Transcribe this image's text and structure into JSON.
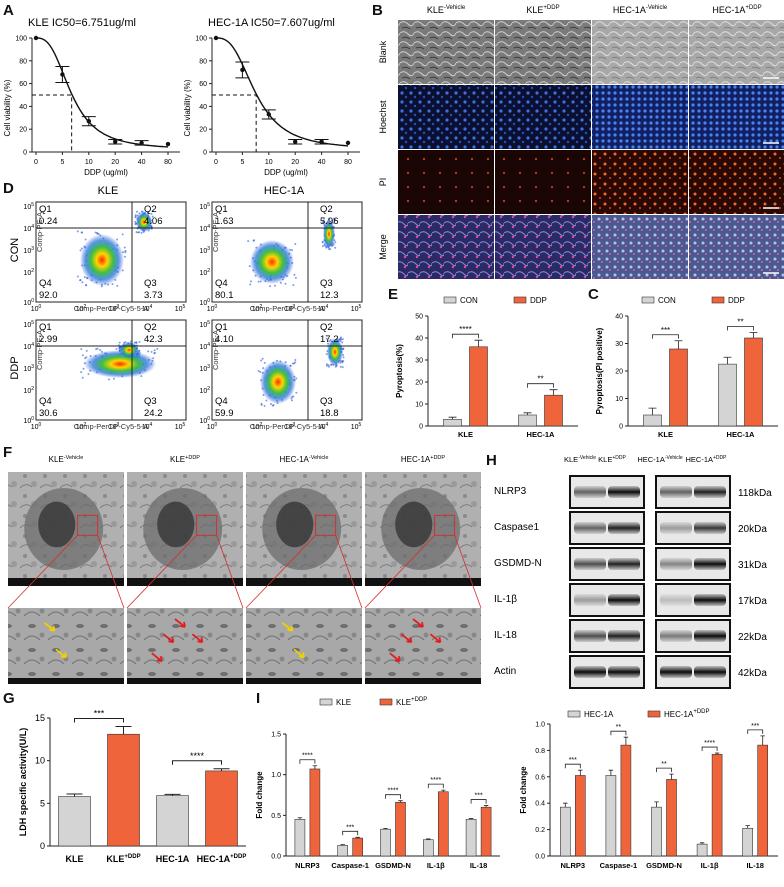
{
  "panels": {
    "A": {
      "letter": "A",
      "charts": [
        {
          "title": "KLE IC50=6.751ug/ml",
          "xlabel": "DDP (ug/ml)",
          "ylabel": "Cell viability (%)",
          "xticks": [
            "0",
            "5",
            "10",
            "20",
            "40",
            "80"
          ],
          "yticks": [
            "0",
            "20",
            "40",
            "60",
            "80",
            "100"
          ],
          "points": [
            [
              0,
              100
            ],
            [
              5,
              68
            ],
            [
              10,
              27
            ],
            [
              20,
              9
            ],
            [
              40,
              8
            ],
            [
              80,
              7
            ]
          ],
          "ic50": 6.751
        },
        {
          "title": "HEC-1A IC50=7.607ug/ml",
          "xlabel": "DDP (ug/ml)",
          "ylabel": "Cell viability (%)",
          "xticks": [
            "0",
            "5",
            "10",
            "20",
            "40",
            "80"
          ],
          "yticks": [
            "0",
            "20",
            "40",
            "60",
            "80",
            "100"
          ],
          "points": [
            [
              0,
              100
            ],
            [
              5,
              72
            ],
            [
              10,
              33
            ],
            [
              20,
              9
            ],
            [
              40,
              9
            ],
            [
              80,
              8
            ]
          ],
          "ic50": 7.607
        }
      ]
    },
    "B": {
      "letter": "B",
      "columns": [
        "KLE",
        "KLE",
        "HEC-1A",
        "HEC-1A"
      ],
      "column_sups": [
        "-Vehicle",
        "+DDP",
        "-Vehicle",
        "+DDP"
      ],
      "rows": [
        "Blank",
        "Hoechst",
        "PI",
        "Merge"
      ]
    },
    "C": {
      "letter": "C",
      "legend": [
        "CON",
        "DDP"
      ],
      "ylabel": "Pyroptosis(PI positive)",
      "yticks": [
        "0",
        "10",
        "20",
        "30",
        "40"
      ],
      "categories": [
        "KLE",
        "HEC-1A"
      ],
      "sig": [
        "***",
        "**"
      ]
    },
    "D": {
      "letter": "D",
      "col_titles": [
        "KLE",
        "HEC-1A"
      ],
      "row_labels": [
        "CON",
        "DDP"
      ],
      "xaxis": "Comp-PerCP-Cy5-5-A",
      "yaxis": "Comp-PE-A",
      "tick_exps": [
        "0",
        "2",
        "3",
        "4",
        "5"
      ],
      "tick_base": "10",
      "plots": [
        {
          "q1": "Q1",
          "q2": "Q2",
          "q3": "Q3",
          "q4": "Q4",
          "v1": "0.24",
          "v2": "4.06",
          "v3": "3.73",
          "v4": "92.0"
        },
        {
          "q1": "Q1",
          "q2": "Q2",
          "q3": "Q3",
          "q4": "Q4",
          "v1": "1.63",
          "v2": "5.96",
          "v3": "12.3",
          "v4": "80.1"
        },
        {
          "q1": "Q1",
          "q2": "Q2",
          "q3": "Q3",
          "q4": "Q4",
          "v1": "2.99",
          "v2": "42.3",
          "v3": "24.2",
          "v4": "30.6"
        },
        {
          "q1": "Q1",
          "q2": "Q2",
          "q3": "Q3",
          "q4": "Q4",
          "v1": "4.10",
          "v2": "17.2",
          "v3": "18.8",
          "v4": "59.9"
        }
      ]
    },
    "E": {
      "letter": "E",
      "legend": [
        "CON",
        "DDP"
      ],
      "ylabel": "Pyroptosis(%)",
      "yticks": [
        "0",
        "10",
        "20",
        "30",
        "40",
        "50"
      ],
      "categories": [
        "KLE",
        "HEC-1A"
      ],
      "sig": [
        "****",
        "**"
      ]
    },
    "F": {
      "letter": "F",
      "columns": [
        "KLE",
        "KLE",
        "HEC-1A",
        "HEC-1A"
      ],
      "column_sups": [
        "-Vehicle",
        "+DDP",
        "-Vehicle",
        "+DDP"
      ]
    },
    "G": {
      "letter": "G",
      "ylabel": "LDH specific activity(U/L)",
      "yticks": [
        "0",
        "5",
        "10",
        "15"
      ],
      "categories": [
        "KLE",
        "KLE",
        "HEC-1A",
        "HEC-1A"
      ],
      "category_sups": [
        "",
        "+DDP",
        "",
        "+DDP"
      ],
      "sig": [
        "***",
        "****"
      ]
    },
    "H": {
      "letter": "H",
      "columns": [
        "KLE",
        "KLE",
        "HEC-1A",
        "HEC-1A"
      ],
      "column_sups": [
        "-Vehicle",
        "+DDP",
        "-Vehicle",
        "+DDP"
      ],
      "proteins": [
        "NLRP3",
        "Caspase1",
        "GSDMD-N",
        "IL-1β",
        "IL-18",
        "Actin"
      ],
      "sizes": [
        "118kDa",
        "20kDa",
        "31kDa",
        "17kDa",
        "22kDa",
        "42kDa"
      ]
    },
    "I": {
      "letter": "I",
      "charts": [
        {
          "legend": [
            "KLE",
            "KLE"
          ],
          "legend_sups": [
            "",
            "+DDP"
          ],
          "ylabel": "Fold change",
          "yticks": [
            "0.0",
            "0.5",
            "1.0",
            "1.5"
          ],
          "categories": [
            "NLRP3",
            "Caspase-1",
            "GSDMD-N",
            "IL-1β",
            "IL-18"
          ],
          "sig": [
            "****",
            "***",
            "****",
            "****",
            "***"
          ]
        },
        {
          "legend": [
            "HEC-1A",
            "HEC-1A"
          ],
          "legend_sups": [
            "",
            "+DDP"
          ],
          "ylabel": "Fold change",
          "yticks": [
            "0.0",
            "0.2",
            "0.4",
            "0.6",
            "0.8",
            "1.0"
          ],
          "categories": [
            "NLRP3",
            "Caspase-1",
            "GSDMD-N",
            "IL-1β",
            "IL-18"
          ],
          "sig": [
            "***",
            "**",
            "**",
            "****",
            "***"
          ]
        }
      ]
    }
  },
  "colors": {
    "control": "#d4d4d4",
    "treated": "#f0643c",
    "axis": "#222222",
    "bar_edge": "#333333"
  },
  "chart_data": [
    {
      "type": "scatter",
      "panel": "A-KLE",
      "x": [
        0,
        5,
        10,
        20,
        40,
        80
      ],
      "y": [
        100,
        68,
        27,
        9,
        8,
        7
      ],
      "ylim": [
        0,
        100
      ]
    },
    {
      "type": "scatter",
      "panel": "A-HEC-1A",
      "x": [
        0,
        5,
        10,
        20,
        40,
        80
      ],
      "y": [
        100,
        72,
        33,
        9,
        9,
        8
      ],
      "ylim": [
        0,
        100
      ]
    },
    {
      "type": "bar",
      "panel": "E",
      "categories": [
        "KLE",
        "HEC-1A"
      ],
      "series": [
        {
          "name": "CON",
          "values": [
            3,
            5
          ],
          "err": [
            1,
            1
          ]
        },
        {
          "name": "DDP",
          "values": [
            36,
            14
          ],
          "err": [
            3,
            2.5
          ]
        }
      ],
      "ylim": [
        0,
        50
      ]
    },
    {
      "type": "bar",
      "panel": "C",
      "categories": [
        "KLE",
        "HEC-1A"
      ],
      "series": [
        {
          "name": "CON",
          "values": [
            4,
            22.5
          ],
          "err": [
            2.5,
            2.5
          ]
        },
        {
          "name": "DDP",
          "values": [
            28,
            32
          ],
          "err": [
            3,
            2
          ]
        }
      ],
      "ylim": [
        0,
        40
      ]
    },
    {
      "type": "bar",
      "panel": "G",
      "categories": [
        "KLE",
        "KLE+DDP",
        "HEC-1A",
        "HEC-1A+DDP"
      ],
      "values": [
        5.8,
        13.1,
        5.9,
        8.8
      ],
      "err": [
        0.3,
        0.9,
        0.15,
        0.25
      ],
      "ylim": [
        0,
        15
      ]
    },
    {
      "type": "bar",
      "panel": "I-KLE",
      "categories": [
        "NLRP3",
        "Caspase-1",
        "GSDMD-N",
        "IL-1β",
        "IL-18"
      ],
      "series": [
        {
          "name": "KLE",
          "values": [
            0.45,
            0.13,
            0.33,
            0.2,
            0.45
          ],
          "err": [
            0.02,
            0.01,
            0.01,
            0.01,
            0.01
          ]
        },
        {
          "name": "KLE+DDP",
          "values": [
            1.07,
            0.22,
            0.66,
            0.79,
            0.6
          ],
          "err": [
            0.04,
            0.01,
            0.02,
            0.02,
            0.02
          ]
        }
      ],
      "ylim": [
        0,
        1.5
      ]
    },
    {
      "type": "bar",
      "panel": "I-HEC-1A",
      "categories": [
        "NLRP3",
        "Caspase-1",
        "GSDMD-N",
        "IL-1β",
        "IL-18"
      ],
      "series": [
        {
          "name": "HEC-1A",
          "values": [
            0.37,
            0.61,
            0.37,
            0.09,
            0.21
          ],
          "err": [
            0.03,
            0.04,
            0.04,
            0.01,
            0.02
          ]
        },
        {
          "name": "HEC-1A+DDP",
          "values": [
            0.61,
            0.84,
            0.58,
            0.77,
            0.84
          ],
          "err": [
            0.04,
            0.06,
            0.04,
            0.01,
            0.07
          ]
        }
      ],
      "ylim": [
        0,
        1.0
      ]
    }
  ]
}
